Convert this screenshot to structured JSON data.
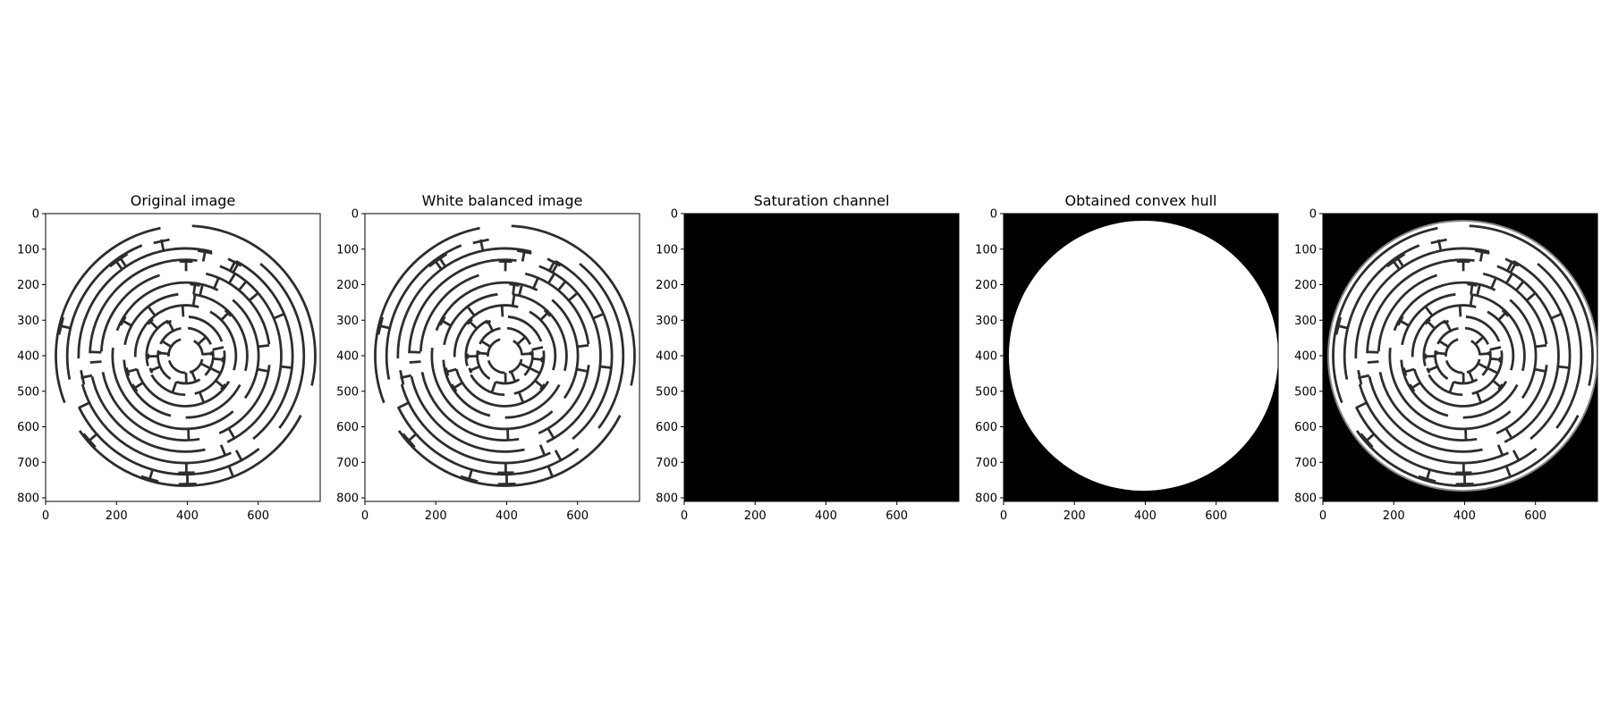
{
  "chart_data": [
    {
      "type": "image",
      "title": "Original image",
      "content": "maze",
      "background": "#ffffff",
      "x_ticks": [
        0,
        200,
        400,
        600
      ],
      "y_ticks": [
        0,
        100,
        200,
        300,
        400,
        500,
        600,
        700,
        800
      ],
      "xlim": [
        0,
        775
      ],
      "ylim": [
        810,
        0
      ]
    },
    {
      "type": "image",
      "title": "White balanced image",
      "content": "maze",
      "background": "#ffffff",
      "x_ticks": [
        0,
        200,
        400,
        600
      ],
      "y_ticks": [
        0,
        100,
        200,
        300,
        400,
        500,
        600,
        700,
        800
      ],
      "xlim": [
        0,
        775
      ],
      "ylim": [
        810,
        0
      ]
    },
    {
      "type": "image",
      "title": "Saturation channel",
      "content": "blank",
      "background": "#000000",
      "x_ticks": [
        0,
        200,
        400,
        600
      ],
      "y_ticks": [
        0,
        100,
        200,
        300,
        400,
        500,
        600,
        700,
        800
      ],
      "xlim": [
        0,
        775
      ],
      "ylim": [
        810,
        0
      ]
    },
    {
      "type": "image",
      "title": "Obtained convex hull",
      "content": "hull",
      "background": "#000000",
      "x_ticks": [
        0,
        200,
        400,
        600
      ],
      "y_ticks": [
        0,
        100,
        200,
        300,
        400,
        500,
        600,
        700,
        800
      ],
      "xlim": [
        0,
        775
      ],
      "ylim": [
        810,
        0
      ]
    },
    {
      "type": "image",
      "title": "",
      "content": "masked-maze",
      "background": "#000000",
      "x_ticks": [
        0,
        200,
        400,
        600
      ],
      "y_ticks": [
        0,
        100,
        200,
        300,
        400,
        500,
        600,
        700,
        800
      ],
      "xlim": [
        0,
        775
      ],
      "ylim": [
        810,
        0
      ]
    }
  ]
}
